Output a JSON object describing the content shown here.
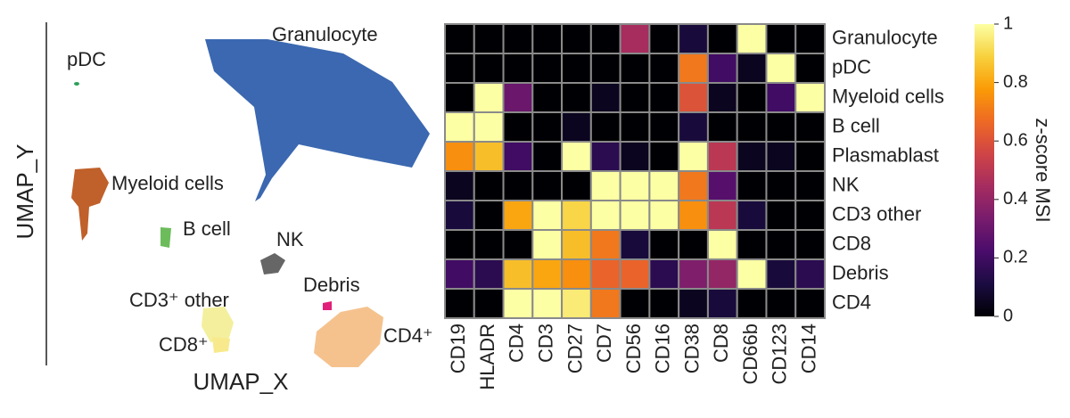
{
  "chart_data": [
    {
      "type": "umap",
      "xlabel": "UMAP_X",
      "ylabel": "UMAP_Y",
      "clusters": [
        {
          "label": "Granulocyte",
          "color": "#3b68b0"
        },
        {
          "label": "pDC",
          "color": "#2ca05a"
        },
        {
          "label": "Myeloid cells",
          "color": "#c0602a"
        },
        {
          "label": "B cell",
          "color": "#6cbc5c"
        },
        {
          "label": "NK",
          "color": "#666666"
        },
        {
          "label": "CD3⁺ other",
          "color": "#f3ef9c"
        },
        {
          "label": "Debris",
          "color": "#e0207a"
        },
        {
          "label": "CD8⁺",
          "color": "#f8ea8c"
        },
        {
          "label": "CD4⁺",
          "color": "#f5c28e"
        }
      ]
    },
    {
      "type": "heatmap",
      "rows": [
        "Granulocyte",
        "pDC",
        "Myeloid cells",
        "B cell",
        "Plasmablast",
        "NK",
        "CD3 other",
        "CD8",
        "Debris",
        "CD4"
      ],
      "columns": [
        "CD19",
        "HLADR",
        "CD4",
        "CD3",
        "CD27",
        "CD7",
        "CD56",
        "CD16",
        "CD38",
        "CD8",
        "CD66b",
        "CD123",
        "CD14"
      ],
      "values": [
        [
          0,
          0,
          0,
          0,
          0,
          0,
          0.45,
          0,
          0.1,
          0,
          1,
          0,
          0
        ],
        [
          0,
          0,
          0,
          0,
          0,
          0,
          0,
          0,
          0.7,
          0.2,
          0.05,
          1,
          0
        ],
        [
          0,
          1,
          0.3,
          0,
          0,
          0.05,
          0,
          0,
          0.6,
          0.05,
          0,
          0.2,
          1
        ],
        [
          1,
          1,
          0,
          0,
          0.05,
          0,
          0,
          0,
          0.1,
          0,
          0,
          0,
          0
        ],
        [
          0.75,
          0.85,
          0.2,
          0,
          1,
          0.15,
          0.05,
          0,
          1,
          0.5,
          0.05,
          0.05,
          0
        ],
        [
          0.05,
          0,
          0,
          0,
          0,
          1,
          1,
          1,
          0.7,
          0.25,
          0,
          0,
          0
        ],
        [
          0.1,
          0,
          0.8,
          1,
          0.9,
          1,
          1,
          1,
          0.75,
          0.5,
          0.1,
          0,
          0
        ],
        [
          0,
          0,
          0,
          1,
          0.85,
          0.7,
          0.1,
          0,
          0,
          1,
          0,
          0,
          0
        ],
        [
          0.2,
          0.15,
          0.85,
          0.8,
          0.75,
          0.65,
          0.65,
          0.15,
          0.35,
          0.4,
          1,
          0.1,
          0.15
        ],
        [
          0,
          0,
          1,
          1,
          0.95,
          0.7,
          0,
          0,
          0.05,
          0.1,
          0,
          0,
          0
        ]
      ],
      "colormap": [
        "#000004",
        "#1b0c41",
        "#4a0c6b",
        "#781c6d",
        "#a52c60",
        "#cf4446",
        "#ed6925",
        "#fb9b06",
        "#f7d13d",
        "#fcffa4"
      ],
      "clim": [
        0,
        1
      ],
      "cticks": [
        0,
        0.2,
        0.4,
        0.6,
        0.8,
        1
      ],
      "clabel": "z-score MSI"
    }
  ]
}
